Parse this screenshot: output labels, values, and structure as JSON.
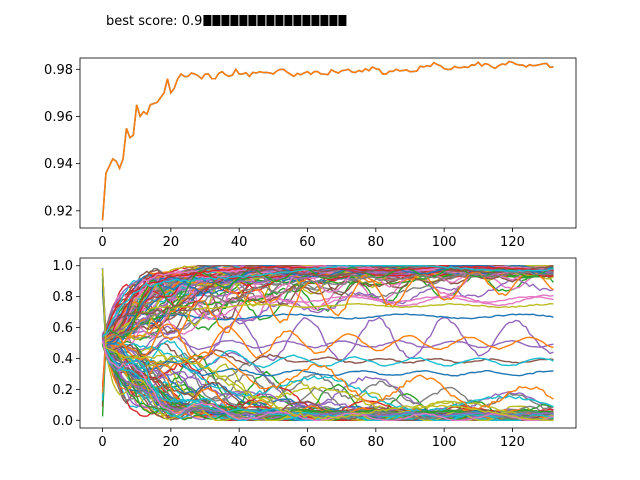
{
  "header_text": "best score: 0.9",
  "chart_data": [
    {
      "type": "line",
      "title": "",
      "xlabel": "",
      "ylabel": "",
      "xlim": [
        -6.6,
        138.6
      ],
      "ylim": [
        0.9127,
        0.9848
      ],
      "xticks": [
        0,
        20,
        40,
        60,
        80,
        100,
        120
      ],
      "yticks": [
        0.92,
        0.94,
        0.96,
        0.98
      ],
      "ytick_labels": [
        "0.92",
        "0.94",
        "0.96",
        "0.98"
      ],
      "series": [
        {
          "name": "best score",
          "color": "#1f77b4",
          "keypoints": [
            [
              0,
              0.916
            ],
            [
              1,
              0.936
            ],
            [
              2,
              0.939
            ],
            [
              3,
              0.942
            ],
            [
              4,
              0.941
            ],
            [
              5,
              0.938
            ],
            [
              6,
              0.942
            ],
            [
              7,
              0.955
            ],
            [
              8,
              0.951
            ],
            [
              9,
              0.952
            ],
            [
              10,
              0.965
            ],
            [
              11,
              0.96
            ],
            [
              12,
              0.962
            ],
            [
              13,
              0.961
            ],
            [
              14,
              0.965
            ],
            [
              16,
              0.966
            ],
            [
              18,
              0.97
            ],
            [
              19,
              0.976
            ],
            [
              20,
              0.97
            ],
            [
              21,
              0.972
            ],
            [
              22,
              0.976
            ],
            [
              23,
              0.978
            ],
            [
              25,
              0.977
            ],
            [
              27,
              0.978
            ],
            [
              29,
              0.976
            ],
            [
              31,
              0.978
            ],
            [
              33,
              0.976
            ],
            [
              35,
              0.979
            ],
            [
              37,
              0.977
            ],
            [
              39,
              0.98
            ],
            [
              41,
              0.978
            ],
            [
              43,
              0.977
            ],
            [
              46,
              0.979
            ],
            [
              50,
              0.978
            ],
            [
              53,
              0.98
            ],
            [
              56,
              0.977
            ],
            [
              60,
              0.979
            ],
            [
              64,
              0.978
            ],
            [
              68,
              0.979
            ],
            [
              72,
              0.98
            ],
            [
              76,
              0.979
            ],
            [
              79,
              0.981
            ],
            [
              82,
              0.978
            ],
            [
              86,
              0.98
            ],
            [
              90,
              0.979
            ],
            [
              94,
              0.981
            ],
            [
              98,
              0.982
            ],
            [
              102,
              0.98
            ],
            [
              106,
              0.981
            ],
            [
              110,
              0.983
            ],
            [
              114,
              0.981
            ],
            [
              118,
              0.982
            ],
            [
              120,
              0.983
            ],
            [
              124,
              0.981
            ],
            [
              128,
              0.982
            ],
            [
              132,
              0.981
            ]
          ]
        },
        {
          "name": "best score (overlay)",
          "color": "#ff7f0e",
          "same_as_previous": true
        }
      ]
    },
    {
      "type": "line",
      "title": "",
      "xlabel": "",
      "ylabel": "",
      "xlim": [
        -6.6,
        138.6
      ],
      "ylim": [
        -0.05,
        1.05
      ],
      "xticks": [
        0,
        20,
        40,
        60,
        80,
        100,
        120
      ],
      "yticks": [
        0.0,
        0.2,
        0.4,
        0.6,
        0.8,
        1.0
      ],
      "ytick_labels": [
        "0.0",
        "0.2",
        "0.4",
        "0.6",
        "0.8",
        "1.0"
      ],
      "x_range": [
        0,
        132
      ],
      "n_series": 150,
      "series_description": "parameter trajectories per iteration, values in [0, 1], starting near 0.5 and spreading toward 0 and 1",
      "palette": [
        "#1f77b4",
        "#ff7f0e",
        "#2ca02c",
        "#d62728",
        "#9467bd",
        "#8c564b",
        "#e377c2",
        "#7f7f7f",
        "#bcbd22",
        "#17becf"
      ]
    }
  ]
}
